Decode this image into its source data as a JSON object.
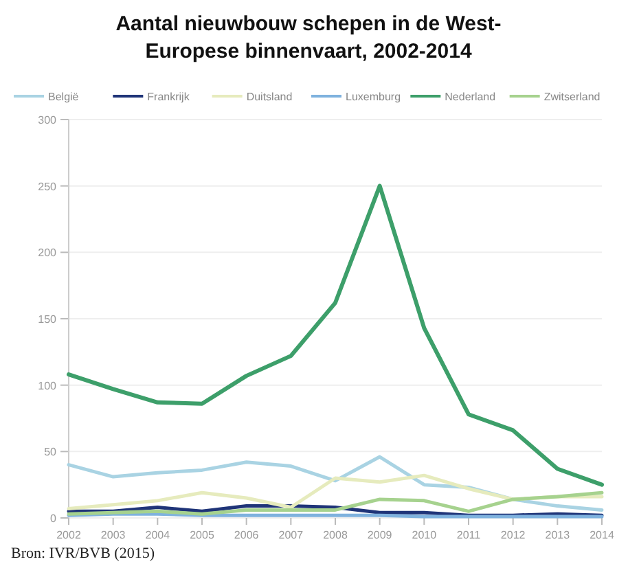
{
  "chart_data": {
    "type": "line",
    "title": "Aantal nieuwbouw schepen in de West-Europese binnenvaart, 2002-2014",
    "categories": [
      "2002",
      "2003",
      "2004",
      "2005",
      "2006",
      "2007",
      "2008",
      "2009",
      "2010",
      "2011",
      "2012",
      "2013",
      "2014"
    ],
    "series": [
      {
        "name": "België",
        "color": "#a9d3e3",
        "values": [
          40,
          31,
          34,
          36,
          42,
          39,
          28,
          46,
          25,
          23,
          14,
          9,
          6
        ]
      },
      {
        "name": "Frankrijk",
        "color": "#1f3478",
        "values": [
          5,
          5,
          8,
          5,
          9,
          9,
          8,
          4,
          4,
          2,
          2,
          3,
          2
        ]
      },
      {
        "name": "Duitsland",
        "color": "#e6ebbd",
        "values": [
          7,
          10,
          13,
          19,
          15,
          8,
          30,
          27,
          32,
          22,
          14,
          16,
          16
        ]
      },
      {
        "name": "Luxemburg",
        "color": "#7fb2de",
        "values": [
          2,
          3,
          3,
          2,
          2,
          2,
          2,
          2,
          1,
          1,
          1,
          1,
          1
        ]
      },
      {
        "name": "Nederland",
        "color": "#3d9f6a",
        "values": [
          108,
          97,
          87,
          86,
          107,
          122,
          162,
          250,
          143,
          78,
          66,
          37,
          25
        ]
      },
      {
        "name": "Zwitserland",
        "color": "#a6d28e",
        "values": [
          3,
          4,
          5,
          3,
          6,
          6,
          6,
          14,
          13,
          5,
          14,
          16,
          19
        ]
      }
    ],
    "ylim": [
      0,
      300
    ],
    "yticks": [
      0,
      50,
      100,
      150,
      200,
      250,
      300
    ],
    "grid": "y",
    "legend": "top",
    "marker": "none",
    "line_style": "solid",
    "annotations": [
      "Bron: IVR/BVB (2015)"
    ]
  }
}
